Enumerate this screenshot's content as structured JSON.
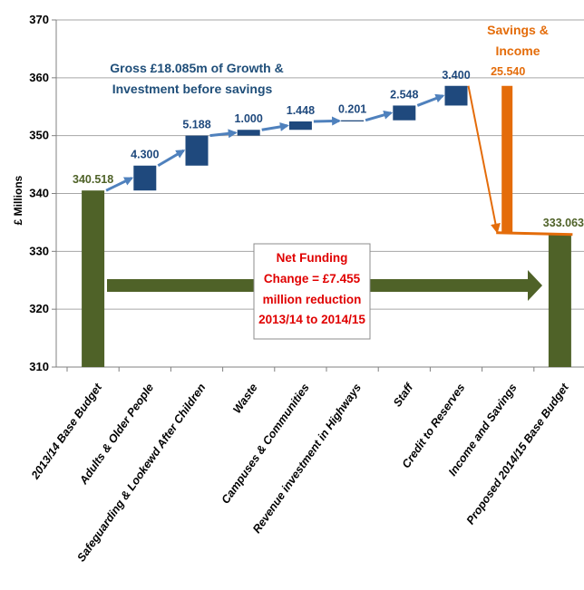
{
  "chart_data": {
    "type": "waterfall",
    "ylabel": "£ Millions",
    "ylim": [
      310,
      370
    ],
    "yticks": [
      310,
      320,
      330,
      340,
      350,
      360,
      370
    ],
    "grid": true,
    "categories": [
      "2013/14 Base Budget",
      "Adults & Older People",
      "Safeguarding & Lookewd After Children",
      "Waste",
      "Campuses & Communities",
      "Revenue investment in Highways",
      "Staff",
      "Credit to Reserves",
      "Income and Savings",
      "Proposed 2014/15 Base Budget"
    ],
    "bars": [
      {
        "kind": "total",
        "start": 310,
        "end": 340.518,
        "label": "340.518"
      },
      {
        "kind": "increase",
        "start": 340.518,
        "end": 344.818,
        "label": "4.300"
      },
      {
        "kind": "increase",
        "start": 344.818,
        "end": 350.006,
        "label": "5.188"
      },
      {
        "kind": "increase",
        "start": 350.006,
        "end": 351.006,
        "label": "1.000"
      },
      {
        "kind": "increase",
        "start": 351.006,
        "end": 352.454,
        "label": "1.448"
      },
      {
        "kind": "increase",
        "start": 352.454,
        "end": 352.655,
        "label": "0.201"
      },
      {
        "kind": "increase",
        "start": 352.655,
        "end": 355.203,
        "label": "2.548"
      },
      {
        "kind": "increase",
        "start": 355.203,
        "end": 358.603,
        "label": "3.400"
      },
      {
        "kind": "decrease",
        "start": 358.603,
        "end": 333.063,
        "label": "25.540"
      },
      {
        "kind": "total",
        "start": 310,
        "end": 333.063,
        "label": "333.063"
      }
    ],
    "colors": {
      "total": "#4F6228",
      "increase": "#1F497D",
      "decrease": "#E46C0A",
      "arrow_blue": "#4F81BD",
      "net_arrow": "#4F6228",
      "grid": "#A6A6A6",
      "red_text": "#E00000"
    },
    "annotations": {
      "growth_line1": "Gross £18.085m of Growth &",
      "growth_line2": "Investment before savings",
      "savings_line1": "Savings &",
      "savings_line2": "Income",
      "net_line1": "Net Funding",
      "net_line2": "Change = £7.455",
      "net_line3": "million reduction",
      "net_line4": "2013/14 to 2014/15"
    }
  }
}
